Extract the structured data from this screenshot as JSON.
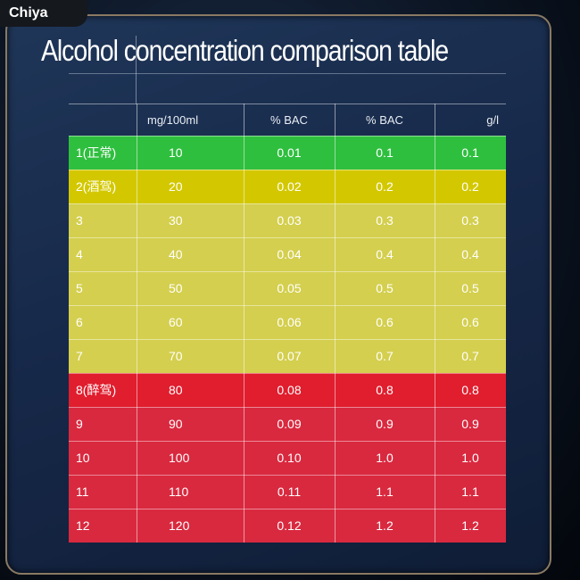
{
  "brand": "Chiya",
  "title": "Alcohol concentration comparison table",
  "colors": {
    "green": "#2fbf3f",
    "yellow_strong": "#d3c800",
    "yellow": "#d4cf4e",
    "red": "#e01e2e",
    "red_light": "#d9293f"
  },
  "columns": [
    "",
    "mg/100ml",
    "% BAC",
    "% BAC",
    "g/l"
  ],
  "rows": [
    {
      "level": "1(正常)",
      "mg": "10",
      "bac1": "0.01",
      "bac2": "0.1",
      "gl": "0.1",
      "color": "#2fbf3f"
    },
    {
      "level": "2(酒驾)",
      "mg": "20",
      "bac1": "0.02",
      "bac2": "0.2",
      "gl": "0.2",
      "color": "#d3c800"
    },
    {
      "level": "3",
      "mg": "30",
      "bac1": "0.03",
      "bac2": "0.3",
      "gl": "0.3",
      "color": "#d4cf4e"
    },
    {
      "level": "4",
      "mg": "40",
      "bac1": "0.04",
      "bac2": "0.4",
      "gl": "0.4",
      "color": "#d4cf4e"
    },
    {
      "level": "5",
      "mg": "50",
      "bac1": "0.05",
      "bac2": "0.5",
      "gl": "0.5",
      "color": "#d4cf4e"
    },
    {
      "level": "6",
      "mg": "60",
      "bac1": "0.06",
      "bac2": "0.6",
      "gl": "0.6",
      "color": "#d4cf4e"
    },
    {
      "level": "7",
      "mg": "70",
      "bac1": "0.07",
      "bac2": "0.7",
      "gl": "0.7",
      "color": "#d4cf4e"
    },
    {
      "level": "8(醉驾)",
      "mg": "80",
      "bac1": "0.08",
      "bac2": "0.8",
      "gl": "0.8",
      "color": "#e01e2e"
    },
    {
      "level": "9",
      "mg": "90",
      "bac1": "0.09",
      "bac2": "0.9",
      "gl": "0.9",
      "color": "#d9293f"
    },
    {
      "level": "10",
      "mg": "100",
      "bac1": "0.10",
      "bac2": "1.0",
      "gl": "1.0",
      "color": "#d9293f"
    },
    {
      "level": "11",
      "mg": "110",
      "bac1": "0.11",
      "bac2": "1.1",
      "gl": "1.1",
      "color": "#d9293f"
    },
    {
      "level": "12",
      "mg": "120",
      "bac1": "0.12",
      "bac2": "1.2",
      "gl": "1.2",
      "color": "#d9293f"
    }
  ]
}
